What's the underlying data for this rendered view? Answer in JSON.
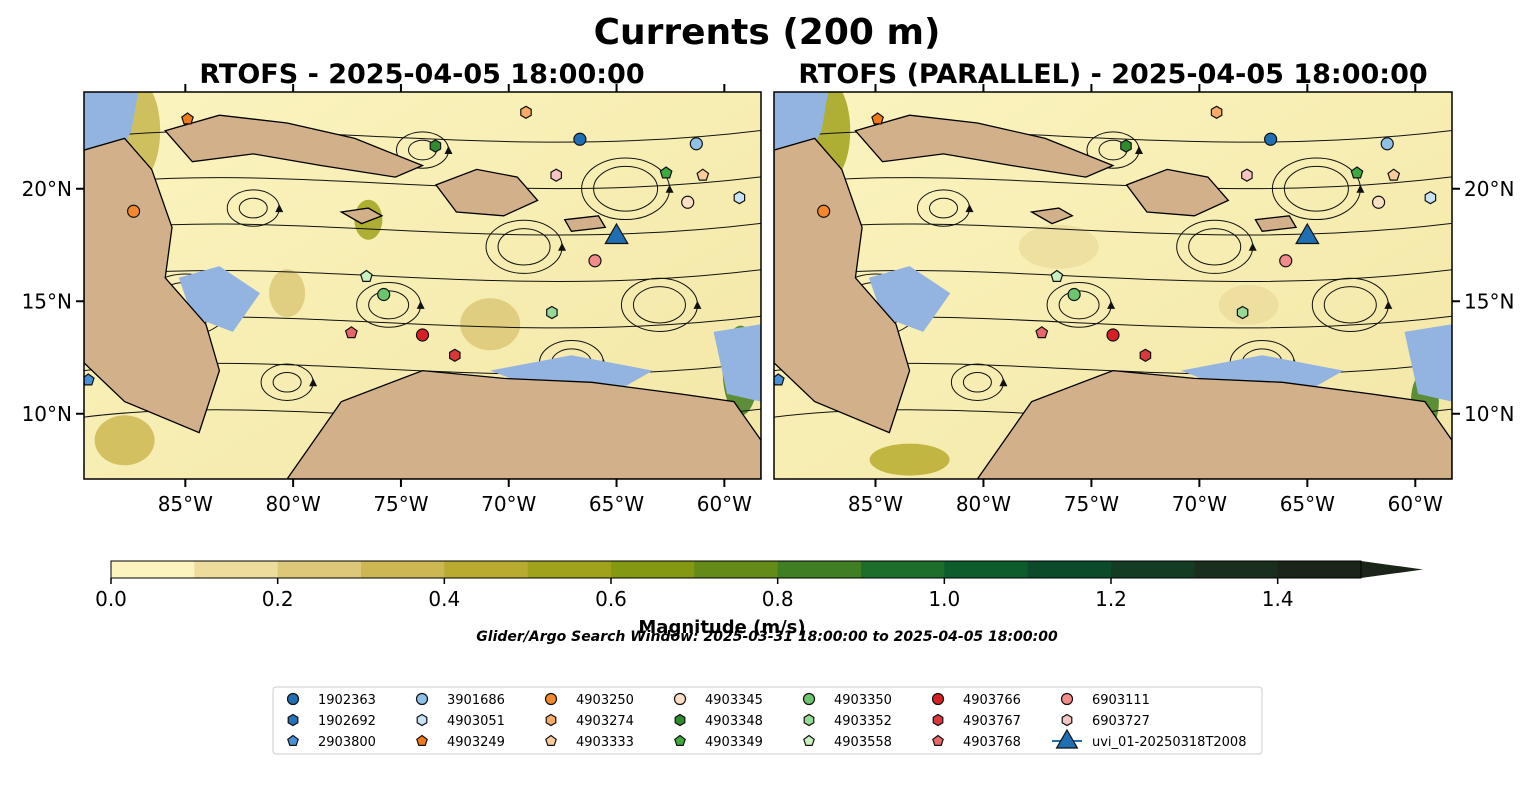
{
  "figure": {
    "suptitle": "Currents (200 m)",
    "search_window": "Glider/Argo Search Window: 2025-03-31 18:00:00 to 2025-04-05 18:00:00"
  },
  "colors": {
    "land": "#d2b08a",
    "shallow": "#93b4e0",
    "land_alt": "#cfb08a"
  },
  "chart_data": [
    {
      "type": "heatmap",
      "title": "RTOFS - 2025-04-05 18:00:00",
      "x_ticks": [
        "85°W",
        "80°W",
        "75°W",
        "70°W",
        "65°W",
        "60°W"
      ],
      "x_tick_values": [
        -85,
        -80,
        -75,
        -70,
        -65,
        -60
      ],
      "y_ticks": [
        "20°N",
        "15°N",
        "10°N"
      ],
      "y_tick_values": [
        20,
        15,
        10
      ],
      "y_tick_side": "left",
      "xlim": [
        -89.7,
        -58.3
      ],
      "ylim": [
        7.1,
        24.3
      ],
      "glider": {
        "name": "uvi_01-20250318T2008",
        "lon": -65.0,
        "lat": 18.0
      },
      "floats": [
        {
          "id": "4903249",
          "lon": -84.9,
          "lat": 23.1
        },
        {
          "id": "4903250",
          "lon": -87.4,
          "lat": 19.0
        },
        {
          "id": "4903274",
          "lon": -69.2,
          "lat": 23.4
        },
        {
          "id": "4903348",
          "lon": -73.4,
          "lat": 21.9
        },
        {
          "id": "1902363",
          "lon": -66.7,
          "lat": 22.2
        },
        {
          "id": "3901686",
          "lon": -61.3,
          "lat": 22.0
        },
        {
          "id": "6903727",
          "lon": -67.8,
          "lat": 20.6
        },
        {
          "id": "4903349",
          "lon": -62.7,
          "lat": 20.7
        },
        {
          "id": "4903333",
          "lon": -61.0,
          "lat": 20.6
        },
        {
          "id": "4903345",
          "lon": -61.7,
          "lat": 19.4
        },
        {
          "id": "4903051",
          "lon": -59.3,
          "lat": 19.6
        },
        {
          "id": "6903111",
          "lon": -66.0,
          "lat": 16.8
        },
        {
          "id": "4903558",
          "lon": -76.6,
          "lat": 16.1
        },
        {
          "id": "4903350",
          "lon": -75.8,
          "lat": 15.3
        },
        {
          "id": "4903352",
          "lon": -68.0,
          "lat": 14.5
        },
        {
          "id": "4903768",
          "lon": -77.3,
          "lat": 13.6
        },
        {
          "id": "4903766",
          "lon": -74.0,
          "lat": 13.5
        },
        {
          "id": "4903767",
          "lon": -72.5,
          "lat": 12.6
        },
        {
          "id": "2903800",
          "lon": -89.5,
          "lat": 11.5
        }
      ]
    },
    {
      "type": "heatmap",
      "title": "RTOFS (PARALLEL) - 2025-04-05 18:00:00",
      "x_ticks": [
        "85°W",
        "80°W",
        "75°W",
        "70°W",
        "65°W",
        "60°W"
      ],
      "x_tick_values": [
        -85,
        -80,
        -75,
        -70,
        -65,
        -60
      ],
      "y_ticks": [
        "20°N",
        "15°N",
        "10°N"
      ],
      "y_tick_values": [
        20,
        15,
        10
      ],
      "y_tick_side": "right",
      "xlim": [
        -89.7,
        -58.3
      ],
      "ylim": [
        7.1,
        24.3
      ],
      "glider": {
        "name": "uvi_01-20250318T2008",
        "lon": -65.0,
        "lat": 18.0
      },
      "floats": [
        {
          "id": "4903249",
          "lon": -84.9,
          "lat": 23.1
        },
        {
          "id": "4903250",
          "lon": -87.4,
          "lat": 19.0
        },
        {
          "id": "4903274",
          "lon": -69.2,
          "lat": 23.4
        },
        {
          "id": "4903348",
          "lon": -73.4,
          "lat": 21.9
        },
        {
          "id": "1902363",
          "lon": -66.7,
          "lat": 22.2
        },
        {
          "id": "3901686",
          "lon": -61.3,
          "lat": 22.0
        },
        {
          "id": "6903727",
          "lon": -67.8,
          "lat": 20.6
        },
        {
          "id": "4903349",
          "lon": -62.7,
          "lat": 20.7
        },
        {
          "id": "4903333",
          "lon": -61.0,
          "lat": 20.6
        },
        {
          "id": "4903345",
          "lon": -61.7,
          "lat": 19.4
        },
        {
          "id": "4903051",
          "lon": -59.3,
          "lat": 19.6
        },
        {
          "id": "6903111",
          "lon": -66.0,
          "lat": 16.8
        },
        {
          "id": "4903558",
          "lon": -76.6,
          "lat": 16.1
        },
        {
          "id": "4903350",
          "lon": -75.8,
          "lat": 15.3
        },
        {
          "id": "4903352",
          "lon": -68.0,
          "lat": 14.5
        },
        {
          "id": "4903768",
          "lon": -77.3,
          "lat": 13.6
        },
        {
          "id": "4903766",
          "lon": -74.0,
          "lat": 13.5
        },
        {
          "id": "4903767",
          "lon": -72.5,
          "lat": 12.6
        },
        {
          "id": "2903800",
          "lon": -89.5,
          "lat": 11.5
        }
      ]
    }
  ],
  "colorbar": {
    "label": "Magnitude (m/s)",
    "ticks": [
      "0.0",
      "0.2",
      "0.4",
      "0.6",
      "0.8",
      "1.0",
      "1.2",
      "1.4"
    ],
    "tick_values": [
      0.0,
      0.2,
      0.4,
      0.6,
      0.8,
      1.0,
      1.2,
      1.4
    ],
    "range": [
      0.0,
      1.5
    ],
    "extend": "max",
    "colors": [
      "#fbf4bf",
      "#ecdd9d",
      "#dcc878",
      "#ccb752",
      "#b8ab2f",
      "#a0a21c",
      "#849811",
      "#648b18",
      "#3f7e22",
      "#1c6e2a",
      "#0c5c2c",
      "#0b4b29",
      "#133c23",
      "#1a2e1d",
      "#1a2418"
    ]
  },
  "legend": {
    "columns": [
      [
        {
          "label": "1902363",
          "marker": "circle",
          "color": "#1f6fb2"
        },
        {
          "label": "1902692",
          "marker": "hexagon",
          "color": "#2a70b8"
        },
        {
          "label": "2903800",
          "marker": "pentagon",
          "color": "#4a90d6"
        }
      ],
      [
        {
          "label": "3901686",
          "marker": "circle",
          "color": "#8ec0e8"
        },
        {
          "label": "4903051",
          "marker": "hexagon",
          "color": "#c8e2f6"
        },
        {
          "label": "4903249",
          "marker": "pentagon",
          "color": "#f07a1a"
        }
      ],
      [
        {
          "label": "4903250",
          "marker": "circle",
          "color": "#f3882c"
        },
        {
          "label": "4903274",
          "marker": "hexagon",
          "color": "#f7ab66"
        },
        {
          "label": "4903333",
          "marker": "pentagon",
          "color": "#fbcc9b"
        }
      ],
      [
        {
          "label": "4903345",
          "marker": "circle",
          "color": "#fde0c4"
        },
        {
          "label": "4903348",
          "marker": "hexagon",
          "color": "#2e8b2e"
        },
        {
          "label": "4903349",
          "marker": "pentagon",
          "color": "#3fa83f"
        }
      ],
      [
        {
          "label": "4903350",
          "marker": "circle",
          "color": "#6cc56c"
        },
        {
          "label": "4903352",
          "marker": "hexagon",
          "color": "#97d997"
        },
        {
          "label": "4903558",
          "marker": "pentagon",
          "color": "#c8f0c0"
        }
      ],
      [
        {
          "label": "4903766",
          "marker": "circle",
          "color": "#d62025"
        },
        {
          "label": "4903767",
          "marker": "hexagon",
          "color": "#d9383c"
        },
        {
          "label": "4903768",
          "marker": "pentagon",
          "color": "#e5676a"
        }
      ],
      [
        {
          "label": "6903111",
          "marker": "circle",
          "color": "#f28c8c"
        },
        {
          "label": "6903727",
          "marker": "hexagon",
          "color": "#f7c4c4"
        },
        {
          "label": "uvi_01-20250318T2008",
          "marker": "triangle",
          "color": "#1f6fb2"
        }
      ]
    ]
  }
}
